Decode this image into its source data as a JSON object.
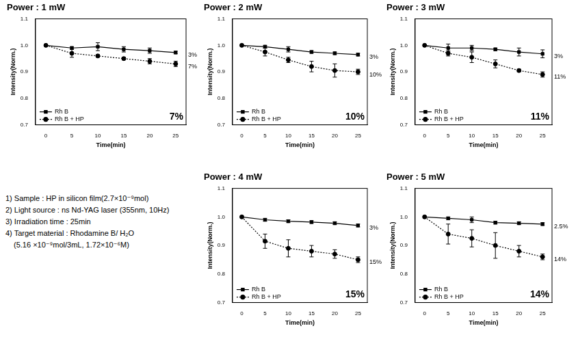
{
  "chart_data": [
    {
      "type": "line",
      "title": "Power : 1 mW",
      "x_label": "Time(min)",
      "y_label": "Intensity(Norm.)",
      "x": [
        0,
        5,
        10,
        15,
        20,
        25
      ],
      "xlim": [
        -2,
        27
      ],
      "xticks": [
        0,
        5,
        10,
        15,
        20,
        25
      ],
      "ylim": [
        0.7,
        1.1
      ],
      "yticks": [
        0.7,
        0.8,
        0.9,
        {
          "value": 1,
          "label": "1.0"
        },
        1.1
      ],
      "grid": false,
      "legend": "lower left",
      "series": [
        {
          "name": "Rh B",
          "color": "#000000",
          "marker": "square",
          "line_style": "solid",
          "values": [
            1.0,
            0.99,
            0.995,
            0.985,
            0.98,
            0.973
          ],
          "errors": [
            0,
            0.005,
            0.015,
            0.01,
            0.01,
            0.005
          ]
        },
        {
          "name": "Rh B + HP",
          "color": "#000000",
          "marker": "circle",
          "line_style": "dotted",
          "values": [
            1.0,
            0.97,
            0.96,
            0.95,
            0.94,
            0.93
          ],
          "errors": [
            0,
            0.015,
            0.005,
            0.005,
            0.01,
            0.01
          ]
        }
      ],
      "annotations": [
        {
          "text": "3%",
          "series": "Rh B"
        },
        {
          "text": "7%",
          "series": "Rh B + HP"
        },
        {
          "text": "7%"
        }
      ]
    },
    {
      "type": "line",
      "title": "Power : 2 mW",
      "x_label": "Time(min)",
      "y_label": "Intensity(Norm.)",
      "x": [
        0,
        5,
        10,
        15,
        20,
        25
      ],
      "xlim": [
        -2,
        27
      ],
      "xticks": [
        0,
        5,
        10,
        15,
        20,
        25
      ],
      "ylim": [
        0.7,
        1.1
      ],
      "yticks": [
        0.7,
        0.8,
        0.9,
        {
          "value": 1,
          "label": "1.0"
        },
        1.1
      ],
      "grid": false,
      "legend": "lower left",
      "series": [
        {
          "name": "Rh B",
          "color": "#000000",
          "marker": "square",
          "line_style": "solid",
          "values": [
            1.0,
            0.995,
            0.985,
            0.975,
            0.97,
            0.965
          ],
          "errors": [
            0,
            0.005,
            0.01,
            0.005,
            0.005,
            0.005
          ]
        },
        {
          "name": "Rh B + HP",
          "color": "#000000",
          "marker": "circle",
          "line_style": "dotted",
          "values": [
            1.0,
            0.975,
            0.945,
            0.92,
            0.905,
            0.9
          ],
          "errors": [
            0,
            0.015,
            0.01,
            0.02,
            0.025,
            0.01
          ]
        }
      ],
      "annotations": [
        {
          "text": "3%",
          "series": "Rh B"
        },
        {
          "text": "10%",
          "series": "Rh B + HP"
        },
        {
          "text": "10%"
        }
      ]
    },
    {
      "type": "line",
      "title": "Power : 3 mW",
      "x_label": "Time(min)",
      "y_label": "Intensity(Norm.)",
      "x": [
        0,
        5,
        10,
        15,
        20,
        25
      ],
      "xlim": [
        -2,
        27
      ],
      "xticks": [
        0,
        5,
        10,
        15,
        20,
        25
      ],
      "ylim": [
        0.7,
        1.1
      ],
      "yticks": [
        0.7,
        0.8,
        0.9,
        {
          "value": 1,
          "label": "1.0"
        },
        1.1
      ],
      "grid": false,
      "legend": "lower left",
      "series": [
        {
          "name": "Rh B",
          "color": "#000000",
          "marker": "square",
          "line_style": "solid",
          "values": [
            1.0,
            0.99,
            0.99,
            0.985,
            0.975,
            0.968
          ],
          "errors": [
            0,
            0.015,
            0.01,
            0.005,
            0.015,
            0.015
          ]
        },
        {
          "name": "Rh B + HP",
          "color": "#000000",
          "marker": "circle",
          "line_style": "dotted",
          "values": [
            1.0,
            0.97,
            0.955,
            0.93,
            0.905,
            0.89
          ],
          "errors": [
            0,
            0.01,
            0.02,
            0.015,
            0.005,
            0.01
          ]
        }
      ],
      "annotations": [
        {
          "text": "3%",
          "series": "Rh B"
        },
        {
          "text": "11%",
          "series": "Rh B + HP"
        },
        {
          "text": "11%"
        }
      ]
    },
    {
      "type": "line",
      "title": "Power : 4 mW",
      "x_label": "Time(min)",
      "y_label": "Intensity(Norm.)",
      "x": [
        0,
        5,
        10,
        15,
        20,
        25
      ],
      "xlim": [
        -2,
        27
      ],
      "xticks": [
        0,
        5,
        10,
        15,
        20,
        25
      ],
      "ylim": [
        0.7,
        1.1
      ],
      "yticks": [
        0.7,
        0.8,
        0.9,
        {
          "value": 1,
          "label": "1.0"
        },
        1.1
      ],
      "grid": false,
      "legend": "lower left",
      "series": [
        {
          "name": "Rh B",
          "color": "#000000",
          "marker": "square",
          "line_style": "solid",
          "values": [
            1.0,
            0.99,
            0.985,
            0.982,
            0.978,
            0.97
          ],
          "errors": [
            0,
            0.005,
            0.005,
            0.005,
            0.005,
            0.005
          ]
        },
        {
          "name": "Rh B + HP",
          "color": "#000000",
          "marker": "circle",
          "line_style": "dotted",
          "values": [
            1.0,
            0.915,
            0.89,
            0.88,
            0.87,
            0.85
          ],
          "errors": [
            0,
            0.025,
            0.03,
            0.02,
            0.015,
            0.01
          ]
        }
      ],
      "annotations": [
        {
          "text": "3%",
          "series": "Rh B"
        },
        {
          "text": "15%",
          "series": "Rh B + HP"
        },
        {
          "text": "15%"
        }
      ]
    },
    {
      "type": "line",
      "title": "Power : 5 mW",
      "x_label": "Time(min)",
      "y_label": "Intensity(Norm.)",
      "x": [
        0,
        5,
        10,
        15,
        20,
        25
      ],
      "xlim": [
        -2,
        27
      ],
      "xticks": [
        0,
        5,
        10,
        15,
        20,
        25
      ],
      "ylim": [
        0.7,
        1.1
      ],
      "yticks": [
        0.7,
        0.8,
        0.9,
        {
          "value": 1,
          "label": "1.0"
        },
        1.1
      ],
      "grid": false,
      "legend": "lower left",
      "series": [
        {
          "name": "Rh B",
          "color": "#000000",
          "marker": "square",
          "line_style": "solid",
          "values": [
            1.0,
            0.995,
            0.99,
            0.98,
            0.978,
            0.975
          ],
          "errors": [
            0,
            0.005,
            0.01,
            0.005,
            0.005,
            0.005
          ]
        },
        {
          "name": "Rh B + HP",
          "color": "#000000",
          "marker": "circle",
          "line_style": "dotted",
          "values": [
            1.0,
            0.94,
            0.925,
            0.9,
            0.88,
            0.86
          ],
          "errors": [
            0,
            0.035,
            0.03,
            0.045,
            0.02,
            0.01
          ]
        }
      ],
      "annotations": [
        {
          "text": "2.5%",
          "series": "Rh B"
        },
        {
          "text": "14%",
          "series": "Rh B + HP"
        },
        {
          "text": "14%"
        }
      ]
    }
  ],
  "notes": [
    [
      "1) Sample : HP in silicon film(2.7×10⁻⁹mol)"
    ],
    [
      "2) Light source : ns Nd-YAG laser (355nm, 10Hz)"
    ],
    [
      "3) Irradiation time : 25min"
    ],
    [
      "4) Target material : Rhodamine B/ H₂O",
      "(5.16 ×10⁻⁹mol/3mL, 1.72×10⁻⁶M)"
    ]
  ]
}
